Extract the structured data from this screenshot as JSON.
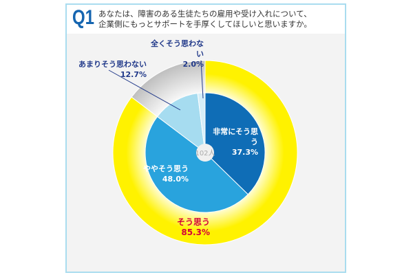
{
  "header": {
    "q": "Q1",
    "line1": "あなたは、障害のある生徒たちの雇用や受け入れについて、",
    "line2": "企業側にもっとサポートを手厚くしてほしいと思いますか。"
  },
  "chart_data": {
    "type": "pie",
    "title": "あなたは、障害のある生徒たちの雇用や受け入れについて、企業側にもっとサポートを手厚くしてほしいと思いますか。",
    "center_label": "102人",
    "inner": [
      {
        "name": "非常にそう思う",
        "value": 37.3,
        "label": "37.3%",
        "color": "#0f6db6"
      },
      {
        "name": "ややそう思う",
        "value": 48.0,
        "label": "48.0%",
        "color": "#29a3dd"
      },
      {
        "name": "あまりそう思わない",
        "value": 12.7,
        "label": "12.7%",
        "color": "#a6dcf0"
      },
      {
        "name": "全くそう思わない",
        "value": 2.0,
        "label": "2.0%",
        "color": "#d6eef8"
      }
    ],
    "outer": [
      {
        "name": "そう思う",
        "value": 85.3,
        "label": "85.3%",
        "color": "#fff200"
      },
      {
        "name": "",
        "value": 14.7,
        "color": "#c8c8c8"
      }
    ]
  }
}
